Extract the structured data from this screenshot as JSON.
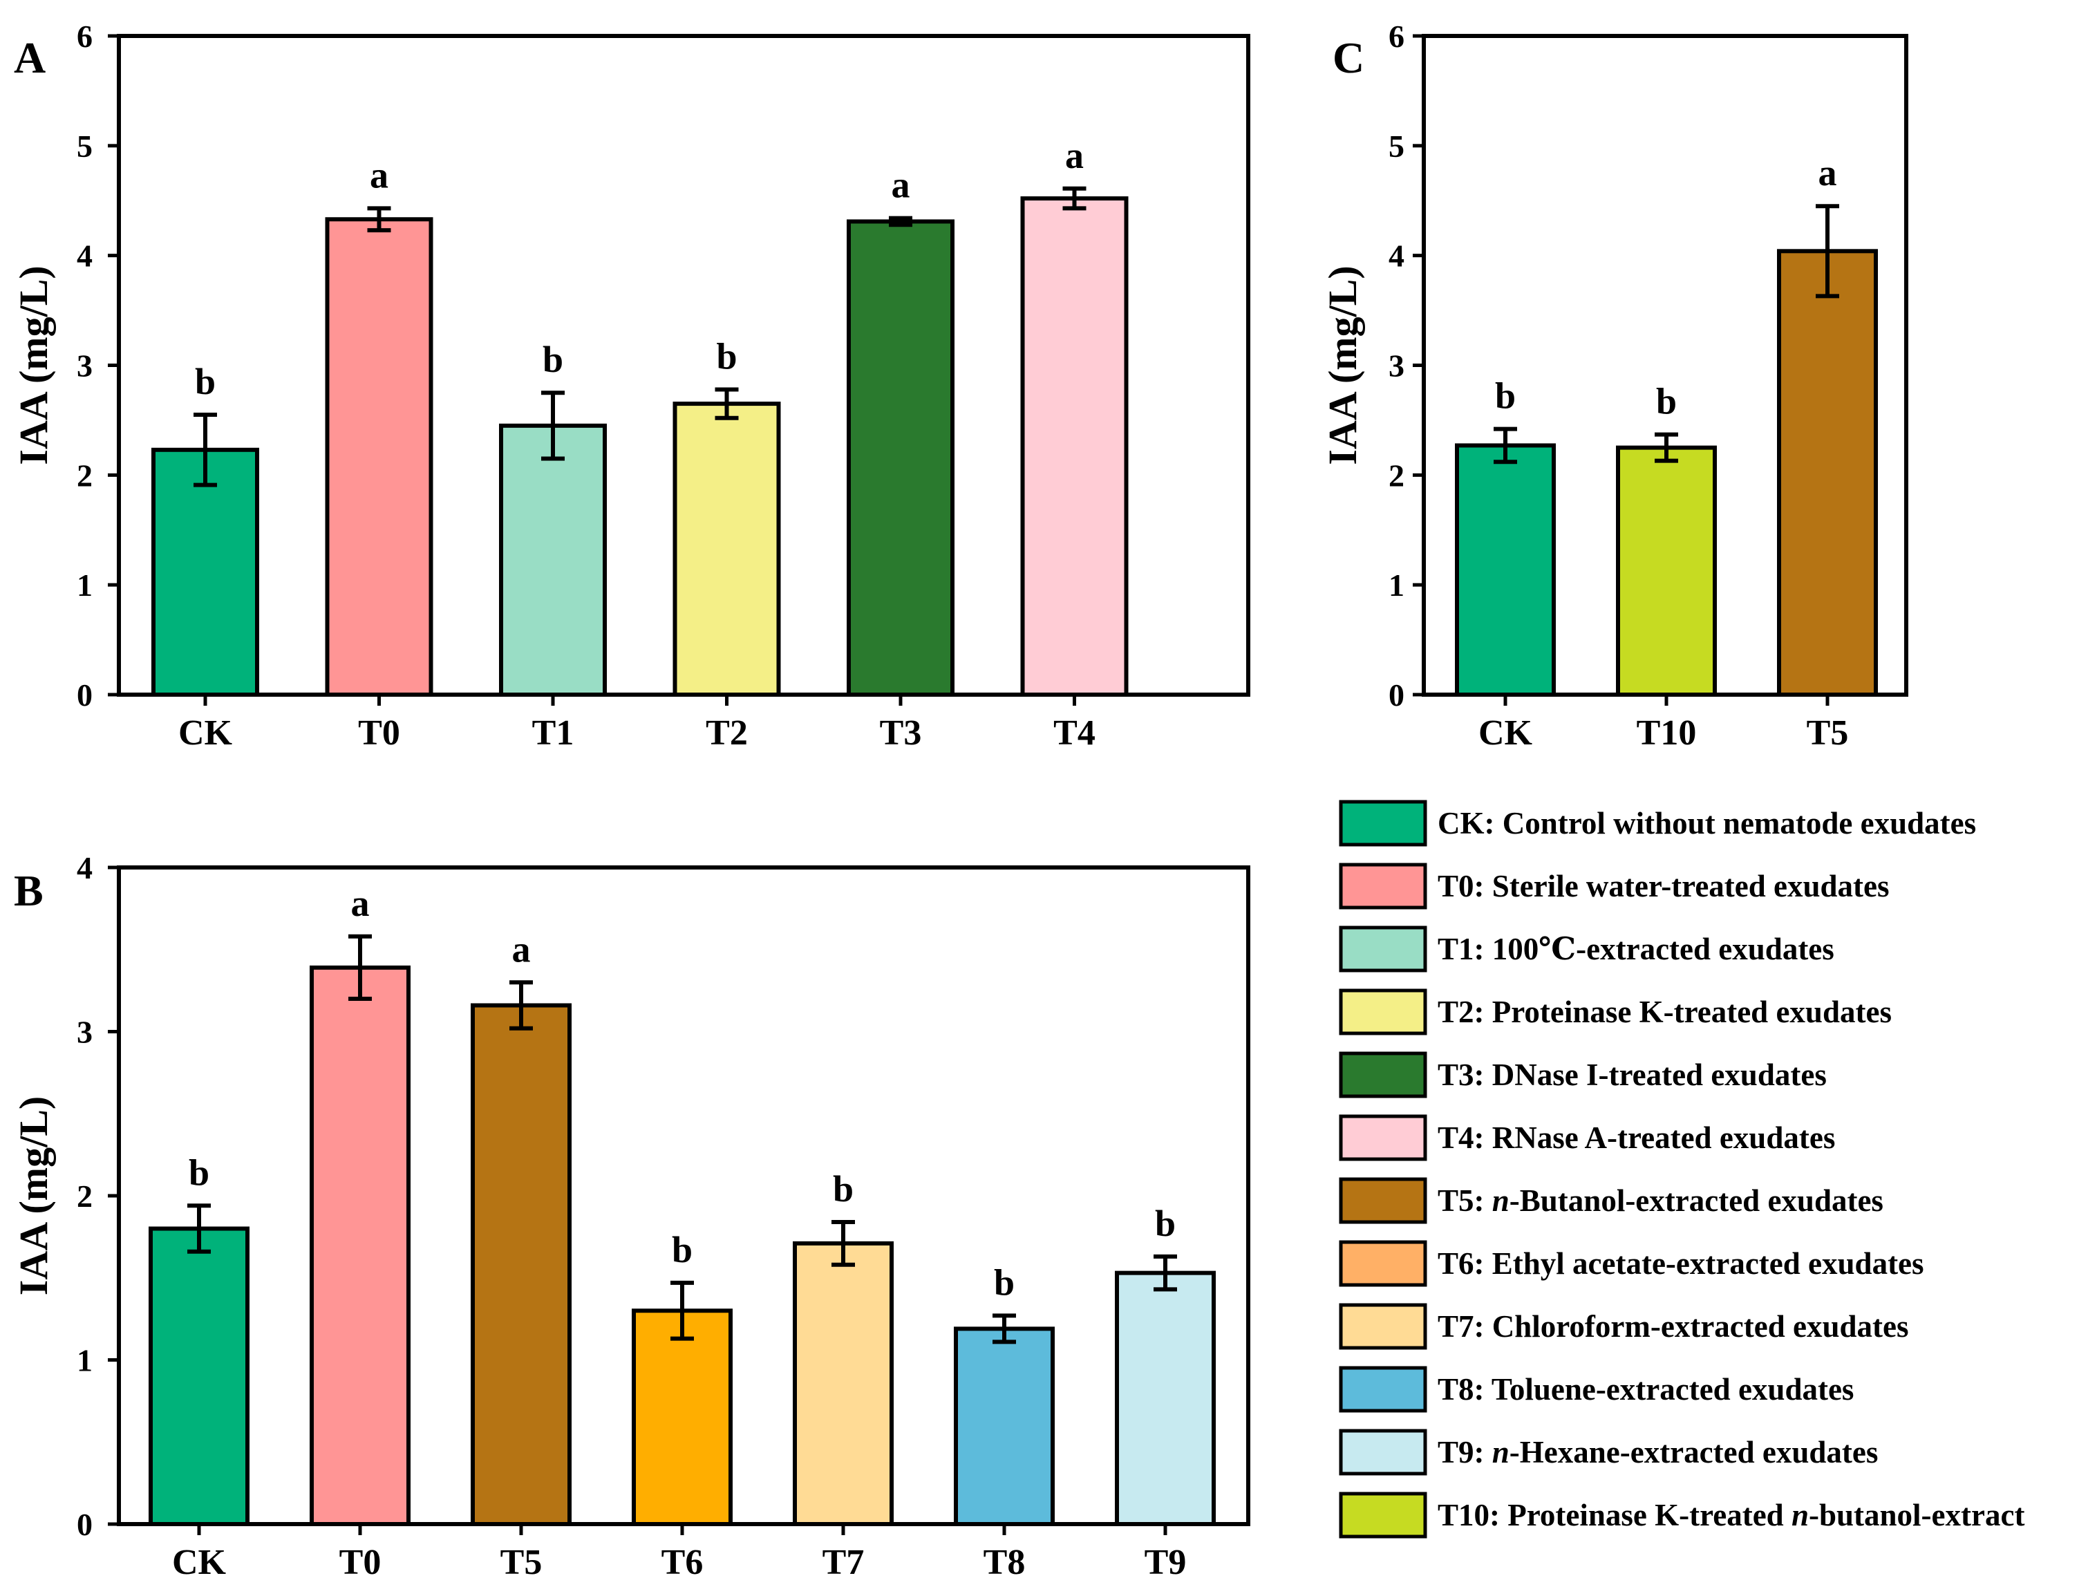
{
  "chart_data": [
    {
      "panel": "A",
      "type": "bar",
      "ylabel": "IAA (mg/L)",
      "ylim": [
        0,
        6
      ],
      "yticks": [
        0,
        1,
        2,
        3,
        4,
        5,
        6
      ],
      "categories": [
        "CK",
        "T0",
        "T1",
        "T2",
        "T3",
        "T4"
      ],
      "values": [
        2.23,
        4.33,
        2.45,
        2.65,
        4.31,
        4.52
      ],
      "errors": [
        0.32,
        0.1,
        0.3,
        0.13,
        0.03,
        0.09
      ],
      "letters": [
        "b",
        "a",
        "b",
        "b",
        "a",
        "a"
      ],
      "colors": [
        "#00B27A",
        "#FF9595",
        "#99DDC5",
        "#F4EF87",
        "#2A7A2E",
        "#FFCCD5"
      ]
    },
    {
      "panel": "B",
      "type": "bar",
      "ylabel": "IAA (mg/L)",
      "ylim": [
        0,
        4
      ],
      "yticks": [
        0,
        1,
        2,
        3,
        4
      ],
      "categories": [
        "CK",
        "T0",
        "T5",
        "T6",
        "T7",
        "T8",
        "T9"
      ],
      "values": [
        1.8,
        3.39,
        3.16,
        1.3,
        1.71,
        1.19,
        1.53
      ],
      "errors": [
        0.14,
        0.19,
        0.14,
        0.17,
        0.13,
        0.08,
        0.1
      ],
      "letters": [
        "b",
        "a",
        "a",
        "b",
        "b",
        "b",
        "b"
      ],
      "colors": [
        "#00B27A",
        "#FF9595",
        "#B57414",
        "#FFAE00",
        "#FFDB95",
        "#5DBBDB",
        "#C7EAF0"
      ]
    },
    {
      "panel": "C",
      "type": "bar",
      "ylabel": "IAA (mg/L)",
      "ylim": [
        0,
        6
      ],
      "yticks": [
        0,
        1,
        2,
        3,
        4,
        5,
        6
      ],
      "categories": [
        "CK",
        "T10",
        "T5"
      ],
      "values": [
        2.27,
        2.25,
        4.04
      ],
      "errors": [
        0.15,
        0.12,
        0.41
      ],
      "letters": [
        "b",
        "b",
        "a"
      ],
      "colors": [
        "#00B27A",
        "#C6DB22",
        "#B57414"
      ]
    }
  ],
  "legend": [
    {
      "color": "#00B27A",
      "parts": [
        {
          "t": "CK: Control without nematode exudates"
        }
      ]
    },
    {
      "color": "#FF9595",
      "parts": [
        {
          "t": "T0: Sterile water-treated exudates"
        }
      ]
    },
    {
      "color": "#99DDC5",
      "parts": [
        {
          "t": "T1: 100℃-extracted exudates"
        }
      ]
    },
    {
      "color": "#F4EF87",
      "parts": [
        {
          "t": "T2: Proteinase K-treated exudates"
        }
      ]
    },
    {
      "color": "#2A7A2E",
      "parts": [
        {
          "t": "T3: DNase I-treated exudates"
        }
      ]
    },
    {
      "color": "#FFCCD5",
      "parts": [
        {
          "t": "T4: RNase A-treated exudates"
        }
      ]
    },
    {
      "color": "#B57414",
      "parts": [
        {
          "t": "T5: "
        },
        {
          "t": "n",
          "i": true
        },
        {
          "t": "-Butanol-extracted exudates"
        }
      ]
    },
    {
      "color": "#FFB066",
      "parts": [
        {
          "t": "T6: Ethyl acetate-extracted exudates"
        }
      ]
    },
    {
      "color": "#FFDB95",
      "parts": [
        {
          "t": "T7: Chloroform-extracted exudates"
        }
      ]
    },
    {
      "color": "#5DBBDB",
      "parts": [
        {
          "t": "T8: Toluene-extracted exudates"
        }
      ]
    },
    {
      "color": "#C7EAF0",
      "parts": [
        {
          "t": "T9: "
        },
        {
          "t": "n",
          "i": true
        },
        {
          "t": "-Hexane-extracted exudates"
        }
      ]
    },
    {
      "color": "#C6DB22",
      "parts": [
        {
          "t": "T10: Proteinase K-treated "
        },
        {
          "t": "n",
          "i": true
        },
        {
          "t": "-butanol-extract"
        }
      ]
    }
  ]
}
